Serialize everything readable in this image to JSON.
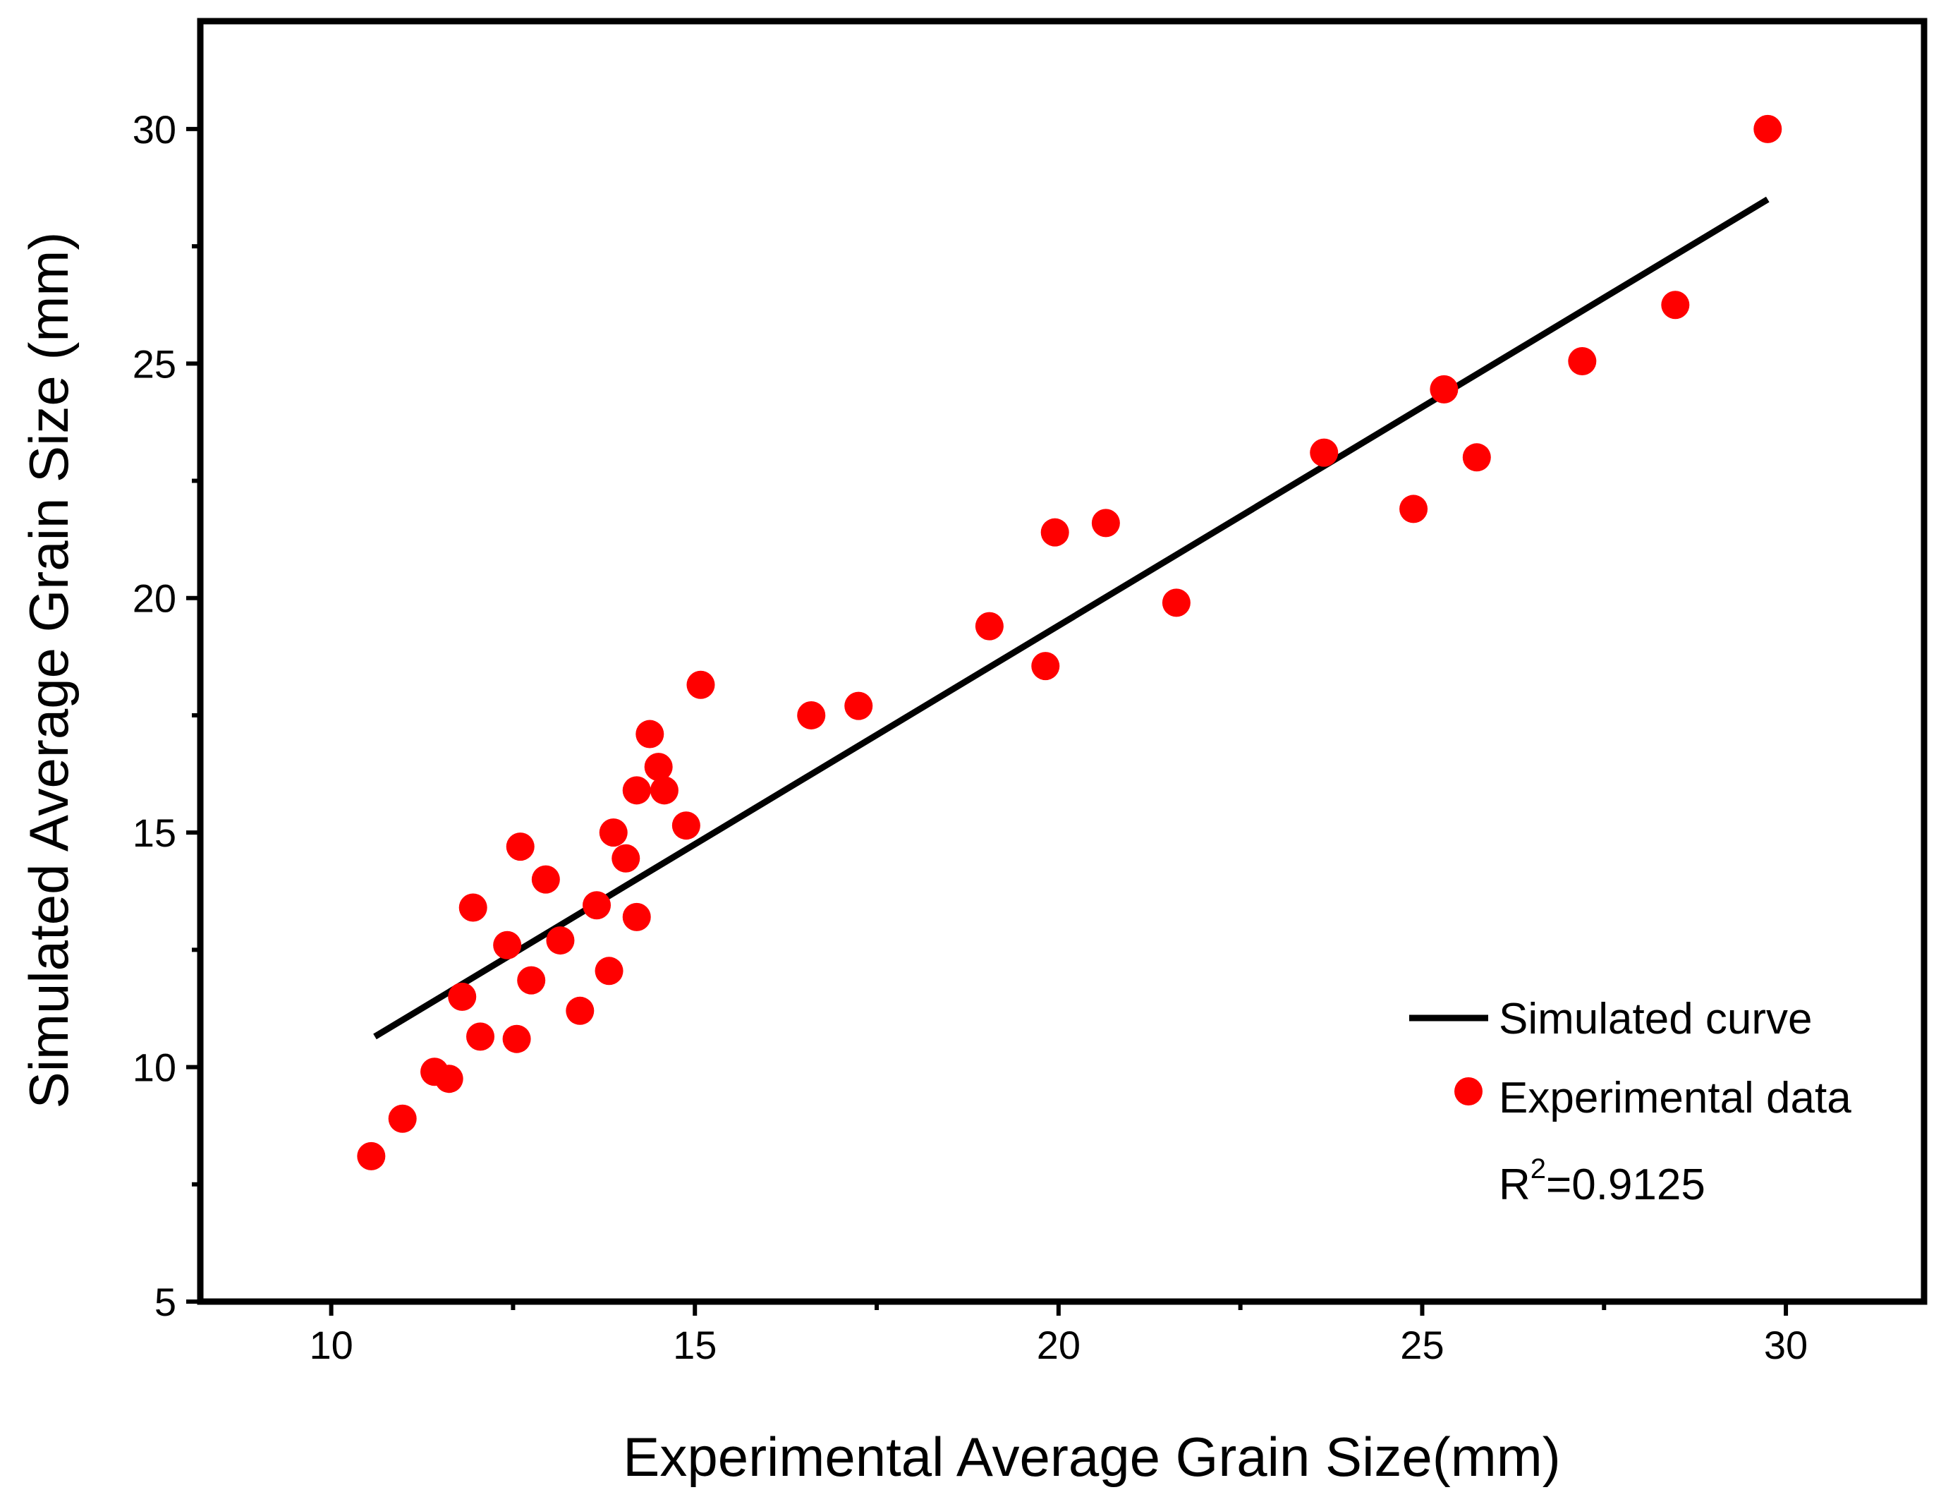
{
  "chart_data": {
    "type": "scatter",
    "title": "",
    "xlabel": "Experimental Average Grain Size(mm)",
    "ylabel": "Simulated Average Grain Size (mm)",
    "xlim": [
      8.2,
      31.9
    ],
    "ylim": [
      5,
      32.3
    ],
    "x_ticks": [
      10,
      15,
      20,
      25,
      30
    ],
    "y_ticks": [
      5,
      10,
      15,
      20,
      25,
      30
    ],
    "x_tick_labels": [
      "10",
      "15",
      "20",
      "25",
      "30"
    ],
    "y_tick_labels": [
      "5",
      "10",
      "15",
      "20",
      "25",
      "30"
    ],
    "grid": false,
    "legend_position": "bottom-right",
    "colors": {
      "line": "#000000",
      "points": "#ff0000",
      "axes": "#000000"
    },
    "series": [
      {
        "name": "Simulated curve",
        "type": "line",
        "x": [
          10.6,
          29.75
        ],
        "y": [
          10.65,
          28.5
        ]
      },
      {
        "name": "Experimental data",
        "type": "scatter",
        "x": [
          10.55,
          10.98,
          11.42,
          11.62,
          11.8,
          11.95,
          12.05,
          12.42,
          12.55,
          12.6,
          12.75,
          12.95,
          13.15,
          13.42,
          13.65,
          13.82,
          13.88,
          14.05,
          14.2,
          14.2,
          14.38,
          14.5,
          14.58,
          14.88,
          15.08,
          16.6,
          17.25,
          19.05,
          19.82,
          19.95,
          20.65,
          21.62,
          23.65,
          24.88,
          25.3,
          25.75,
          27.2,
          28.48,
          29.75
        ],
        "y": [
          8.1,
          8.9,
          9.9,
          9.75,
          11.5,
          13.4,
          10.65,
          12.6,
          10.6,
          14.7,
          11.85,
          14.0,
          12.7,
          11.2,
          13.45,
          12.05,
          15.0,
          14.45,
          13.2,
          15.9,
          17.1,
          16.4,
          15.9,
          15.15,
          18.15,
          17.5,
          17.7,
          19.4,
          18.55,
          21.4,
          21.6,
          19.9,
          23.1,
          21.9,
          24.45,
          23.0,
          25.05,
          26.25,
          30.0
        ]
      }
    ],
    "annotation": {
      "text": "R",
      "superscript": "2",
      "value_text": "=0.9125"
    }
  }
}
